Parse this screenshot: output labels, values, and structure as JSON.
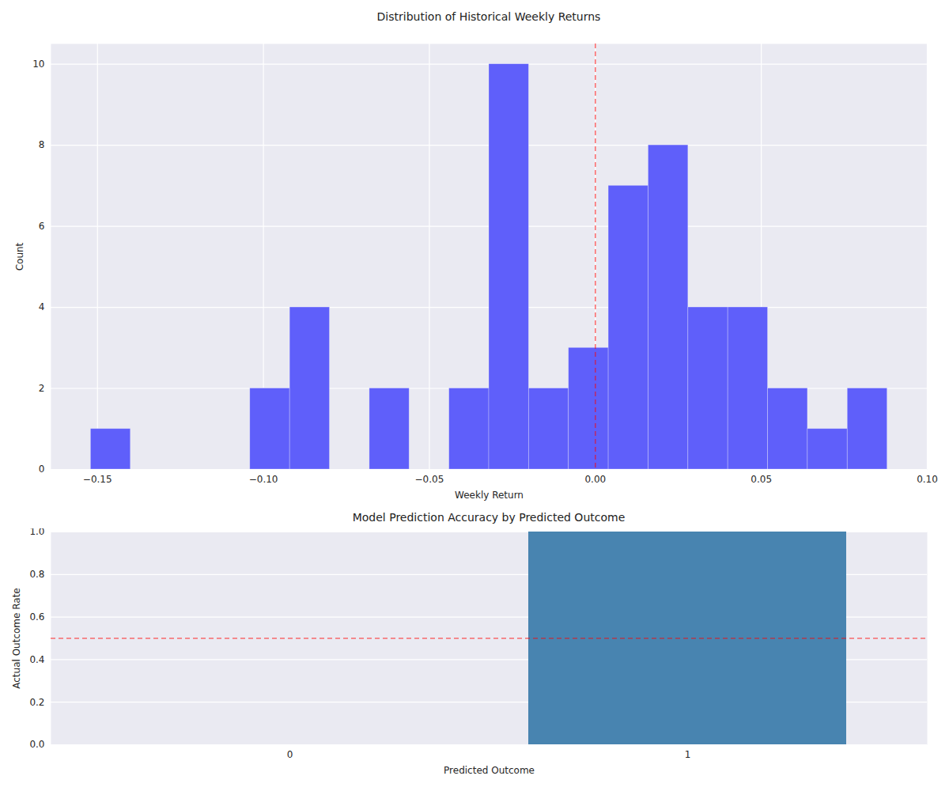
{
  "chart_data": [
    {
      "type": "histogram",
      "title": "Distribution of Historical Weekly Returns",
      "x_label": "Weekly Return",
      "y_label": "Count",
      "bins": [
        -0.152,
        -0.14,
        -0.128,
        -0.116,
        -0.104,
        -0.092,
        -0.08,
        -0.068,
        -0.056,
        -0.044,
        -0.032,
        -0.02,
        -0.008,
        0.004,
        0.016,
        0.028,
        0.04,
        0.052,
        0.064,
        0.076,
        0.088
      ],
      "values": [
        1,
        0,
        0,
        0,
        2,
        4,
        0,
        2,
        0,
        2,
        10,
        2,
        3,
        7,
        8,
        4,
        4,
        2,
        1,
        2
      ],
      "color": "#5f5ffa",
      "xlim": [
        -0.164,
        0.1
      ],
      "xticks": [
        {
          "value": -0.15,
          "label": "−0.15"
        },
        {
          "value": -0.1,
          "label": "−0.10"
        },
        {
          "value": -0.05,
          "label": "−0.05"
        },
        {
          "value": 0,
          "label": "0.00"
        },
        {
          "value": 0.05,
          "label": "0.05"
        },
        {
          "value": 0.1,
          "label": "0.10"
        }
      ],
      "ylim": [
        0,
        10.5
      ],
      "yticks": [
        0,
        2,
        4,
        6,
        8,
        10
      ],
      "grid": true,
      "vline": {
        "value": 0,
        "color": "#ff0000",
        "line_style": "dashed"
      }
    },
    {
      "type": "bar",
      "title": "Model Prediction Accuracy by Predicted Outcome",
      "x_label": "Predicted Outcome",
      "y_label": "Actual Outcome Rate",
      "categories": [
        "0",
        "1"
      ],
      "values": [
        0,
        1.0
      ],
      "color": "#4884b0",
      "ylim": [
        0,
        1
      ],
      "yticks": [
        {
          "value": 0,
          "label": "0.0"
        },
        {
          "value": 0.2,
          "label": "0.2"
        },
        {
          "value": 0.4,
          "label": "0.4"
        },
        {
          "value": 0.6,
          "label": "0.6"
        },
        {
          "value": 0.8,
          "label": "0.8"
        },
        {
          "value": 1,
          "label": "1.0"
        }
      ],
      "grid": true,
      "hline": {
        "value": 0.5,
        "color": "#ff0000",
        "line_style": "dashed"
      }
    }
  ]
}
